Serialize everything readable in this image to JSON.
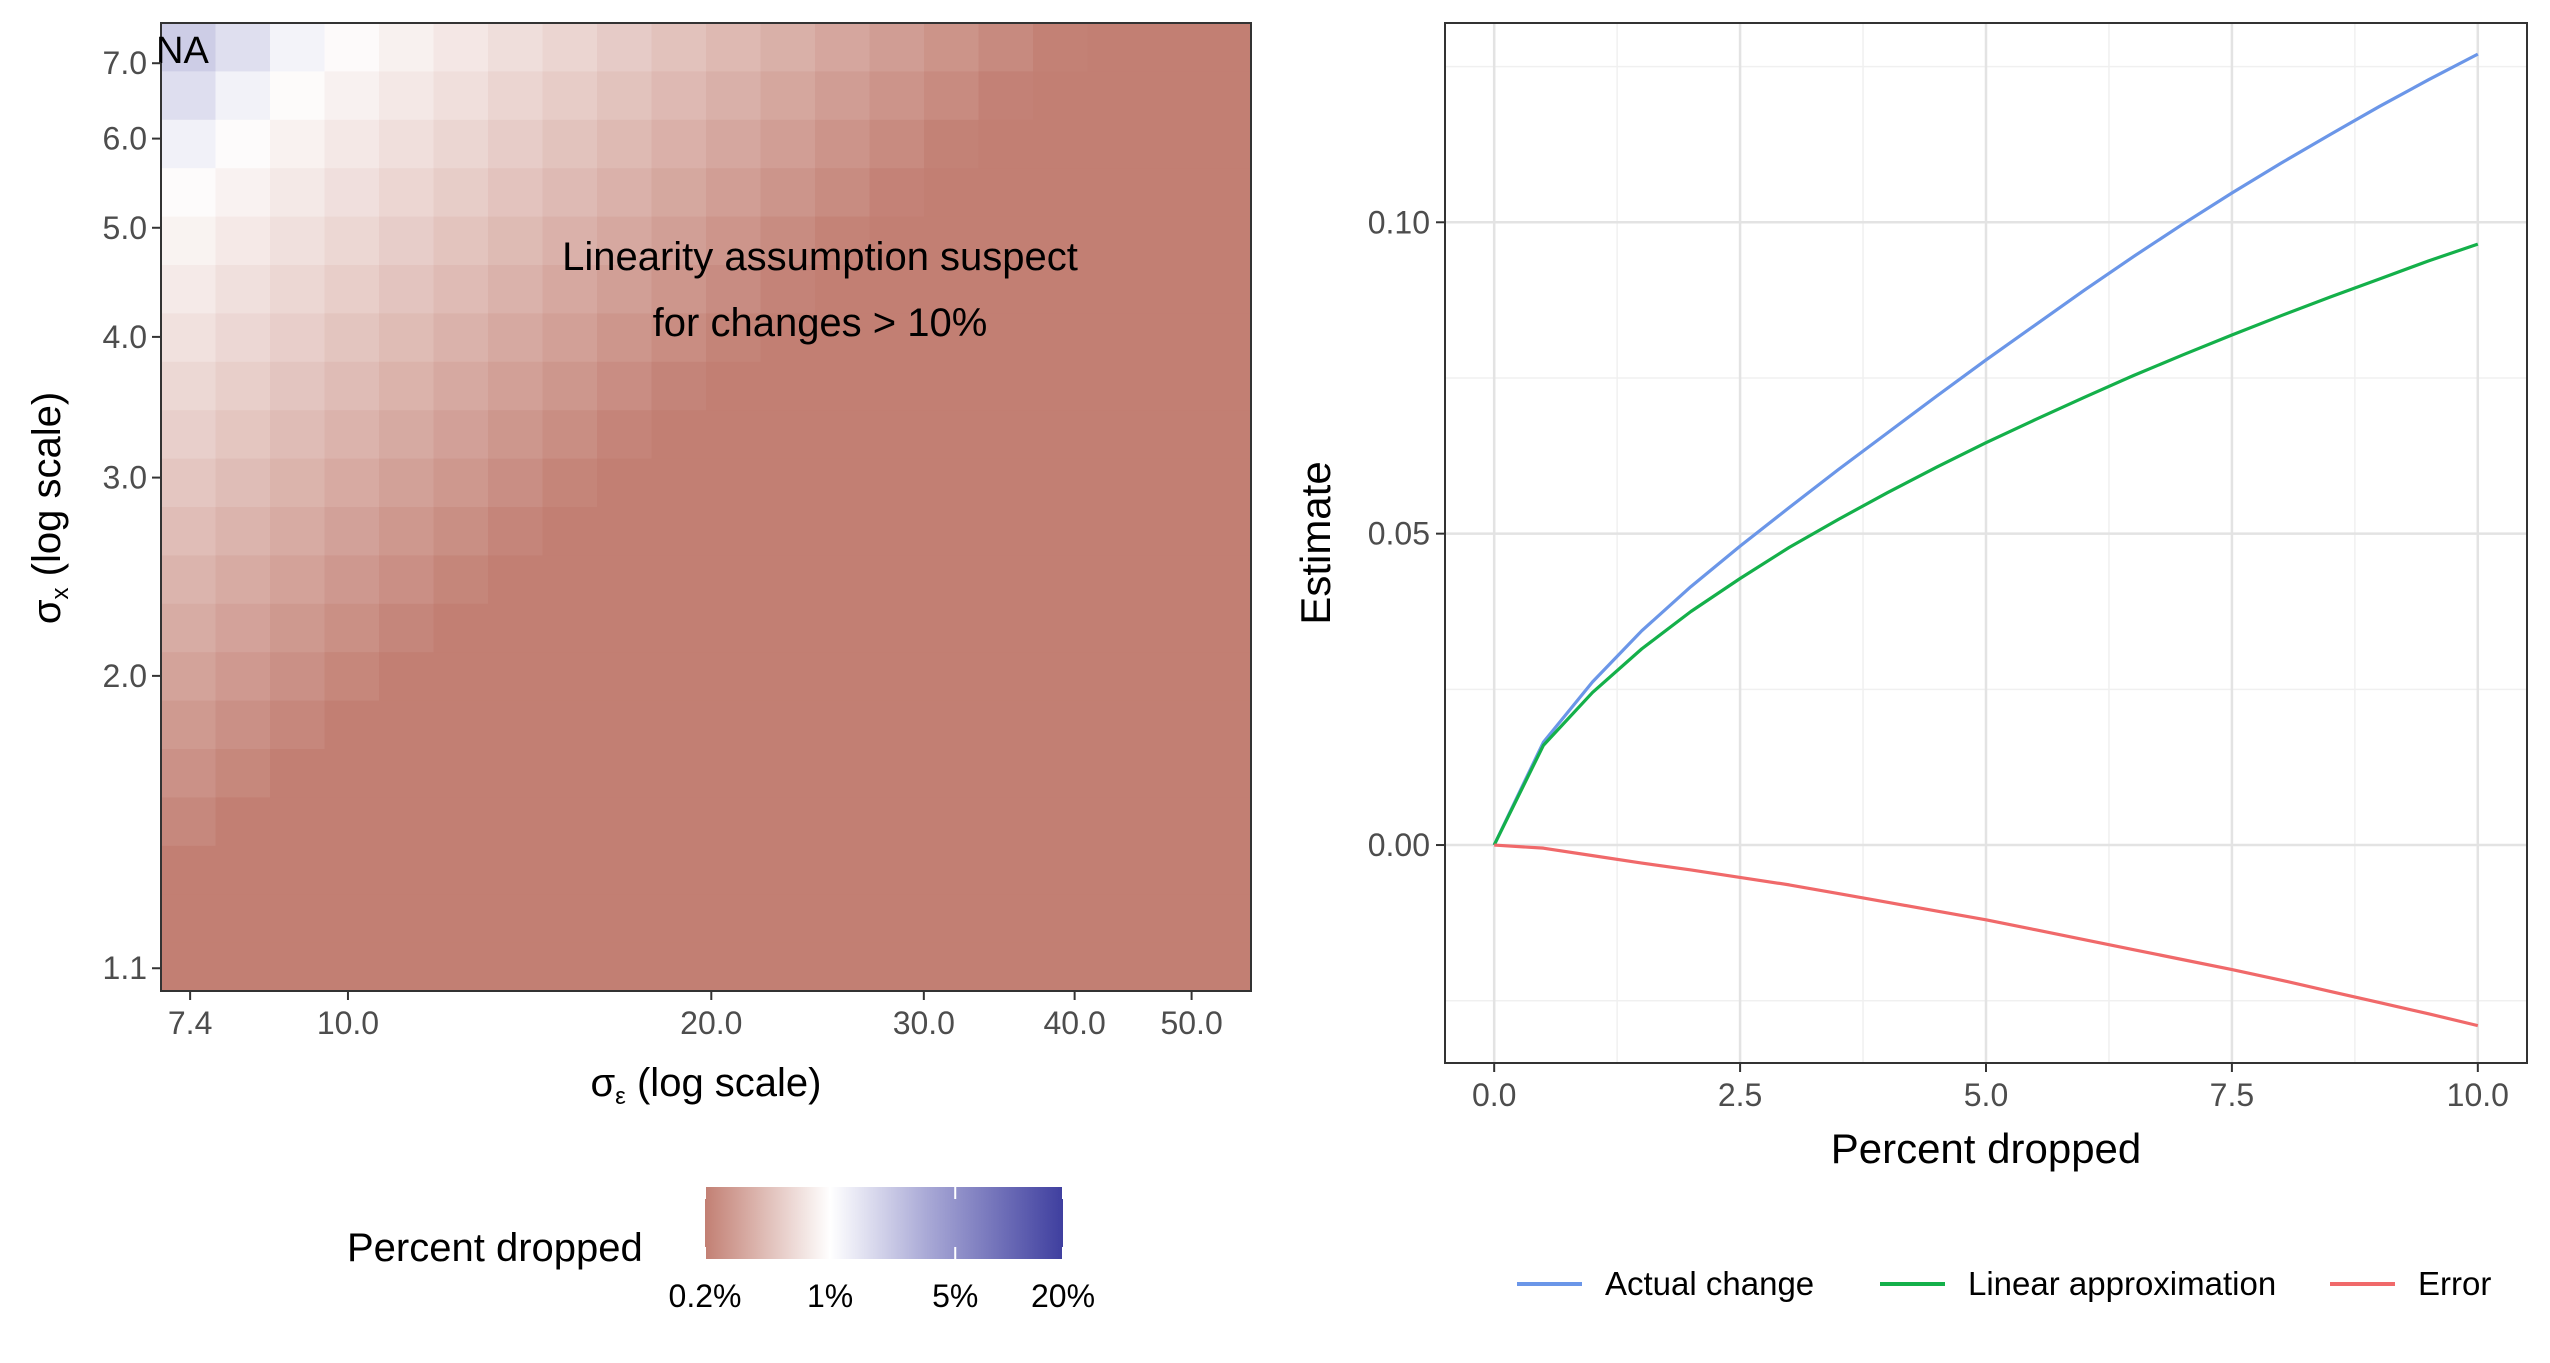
{
  "chart_data": [
    {
      "type": "heatmap",
      "title": "",
      "xlabel": "σε (log scale)",
      "xlabel_symbol": "σ",
      "xlabel_sub": "ε",
      "xlabel_rest": " (log scale)",
      "ylabel": "σx (log scale)",
      "ylabel_symbol": "σ",
      "ylabel_sub": "x",
      "ylabel_rest": " (log scale)",
      "x_scale": "log",
      "y_scale": "log",
      "x_range": [
        7.0,
        56.0
      ],
      "y_range": [
        1.05,
        7.6
      ],
      "x_ticks": [
        7.4,
        10.0,
        20.0,
        30.0,
        40.0,
        50.0
      ],
      "x_tick_labels": [
        "7.4",
        "10.0",
        "20.0",
        "30.0",
        "40.0",
        "50.0"
      ],
      "y_ticks": [
        1.1,
        2.0,
        3.0,
        4.0,
        5.0,
        6.0,
        7.0
      ],
      "y_tick_labels": [
        "1.1",
        "2.0",
        "3.0",
        "4.0",
        "5.0",
        "6.0",
        "7.0"
      ],
      "grid_cols": 20,
      "grid_rows": 20,
      "value": "Percent dropped",
      "value_description": "Percent dropped needed to change estimate; blue = large (up to ~20%), white ≈ 1%, red = small (~0.2%)",
      "boundary_rule": "cells with log10(x)-log10(y) <= -0.45 are NA; cells with diff in (-0.45,-0.3] are marked X",
      "na_label": "NA",
      "annotation_line1": "Linearity assumption suspect",
      "annotation_line2": "for changes > 10%",
      "legend": {
        "title": "Percent dropped",
        "tick_labels": [
          "0.2%",
          "1%",
          "5%",
          "20%"
        ],
        "tick_values": [
          0.2,
          1,
          5,
          20
        ],
        "colors": [
          "#c27f73",
          "#ffffff",
          "#3f3f9f"
        ]
      }
    },
    {
      "type": "line",
      "title": "",
      "xlabel": "Percent dropped",
      "ylabel": "Estimate",
      "xlim": [
        -0.5,
        10.5
      ],
      "ylim": [
        -0.035,
        0.132
      ],
      "x_ticks": [
        0.0,
        2.5,
        5.0,
        7.5,
        10.0
      ],
      "x_tick_labels": [
        "0.0",
        "2.5",
        "5.0",
        "7.5",
        "10.0"
      ],
      "y_ticks": [
        0.0,
        0.05,
        0.1
      ],
      "y_tick_labels": [
        "0.00",
        "0.05",
        "0.10"
      ],
      "grid": true,
      "legend_position": "bottom",
      "x": [
        0,
        0.5,
        1,
        1.5,
        2,
        2.5,
        3,
        3.5,
        4,
        4.5,
        5,
        5.5,
        6,
        6.5,
        7,
        7.5,
        8,
        8.5,
        9,
        9.5,
        10
      ],
      "series": [
        {
          "name": "Actual change",
          "color": "#6b96e8",
          "values": [
            0.0,
            0.0165,
            0.0262,
            0.0344,
            0.0415,
            0.048,
            0.0542,
            0.0603,
            0.0662,
            0.0721,
            0.0779,
            0.0835,
            0.0891,
            0.0945,
            0.0997,
            0.1047,
            0.1095,
            0.1141,
            0.1186,
            0.1229,
            0.127
          ]
        },
        {
          "name": "Linear approximation",
          "color": "#14b04a",
          "values": [
            0.0,
            0.016,
            0.0245,
            0.0315,
            0.0375,
            0.0428,
            0.0478,
            0.0523,
            0.0566,
            0.0607,
            0.0646,
            0.0683,
            0.0719,
            0.0754,
            0.0787,
            0.0819,
            0.085,
            0.088,
            0.0909,
            0.0938,
            0.0965
          ]
        },
        {
          "name": "Error",
          "color": "#f0696a",
          "values": [
            0.0,
            -0.0005,
            -0.0017,
            -0.0029,
            -0.004,
            -0.0052,
            -0.0064,
            -0.0078,
            -0.0092,
            -0.0106,
            -0.012,
            -0.0136,
            -0.0152,
            -0.0168,
            -0.0184,
            -0.02,
            -0.0217,
            -0.0235,
            -0.0253,
            -0.0271,
            -0.029
          ]
        }
      ]
    }
  ]
}
